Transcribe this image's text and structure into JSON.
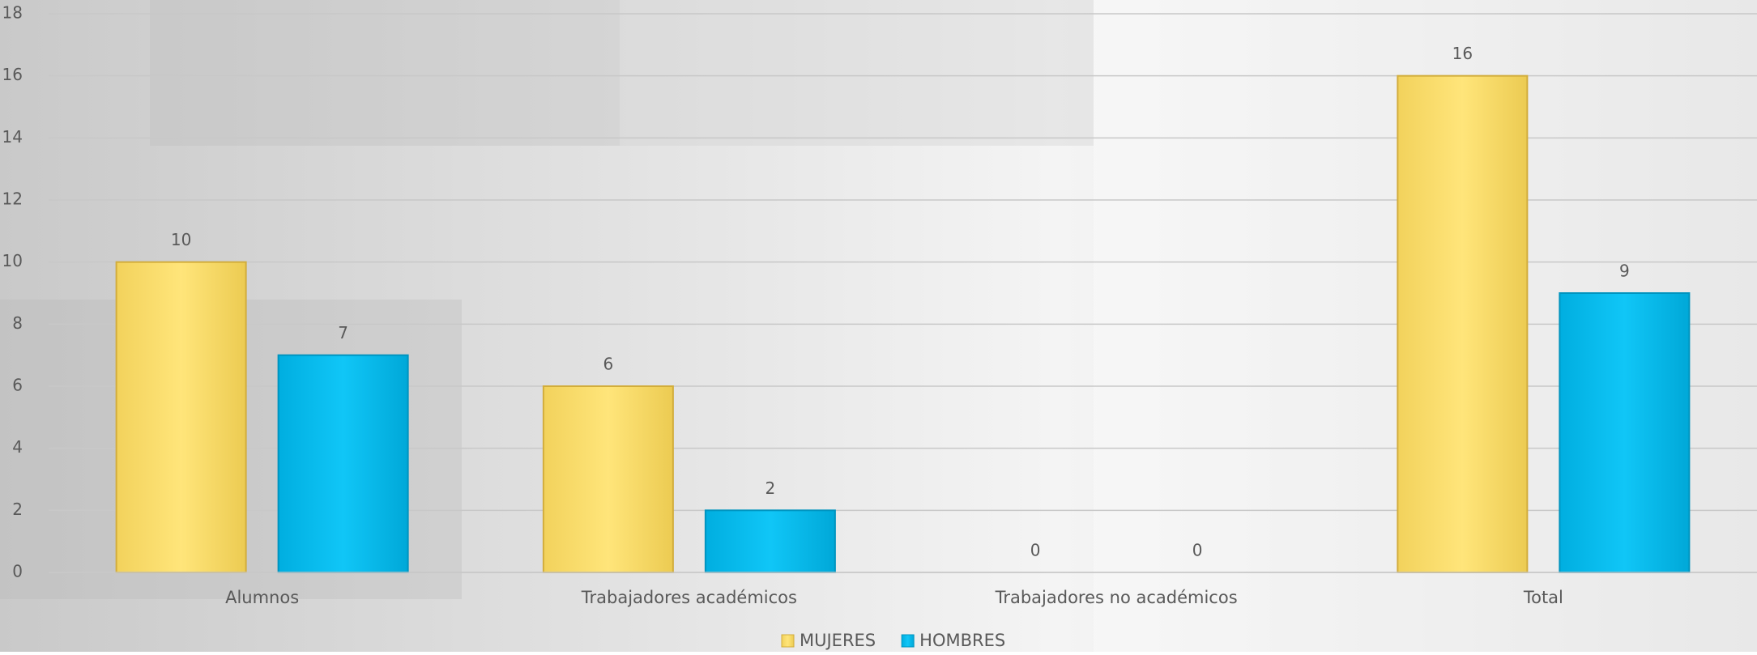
{
  "chart_data": {
    "type": "bar",
    "categories": [
      "Alumnos",
      "Trabajadores académicos",
      "Trabajadores no académicos",
      "Total"
    ],
    "series": [
      {
        "name": "MUJERES",
        "color": "#FFE270",
        "values": [
          10,
          6,
          0,
          16
        ]
      },
      {
        "name": "HOMBRES",
        "color": "#00BFF3",
        "values": [
          7,
          2,
          0,
          9
        ]
      }
    ],
    "ylim": [
      0,
      18
    ],
    "yticks": [
      0,
      2,
      4,
      6,
      8,
      10,
      12,
      14,
      16,
      18
    ],
    "grid": true,
    "legend": "bottom"
  }
}
